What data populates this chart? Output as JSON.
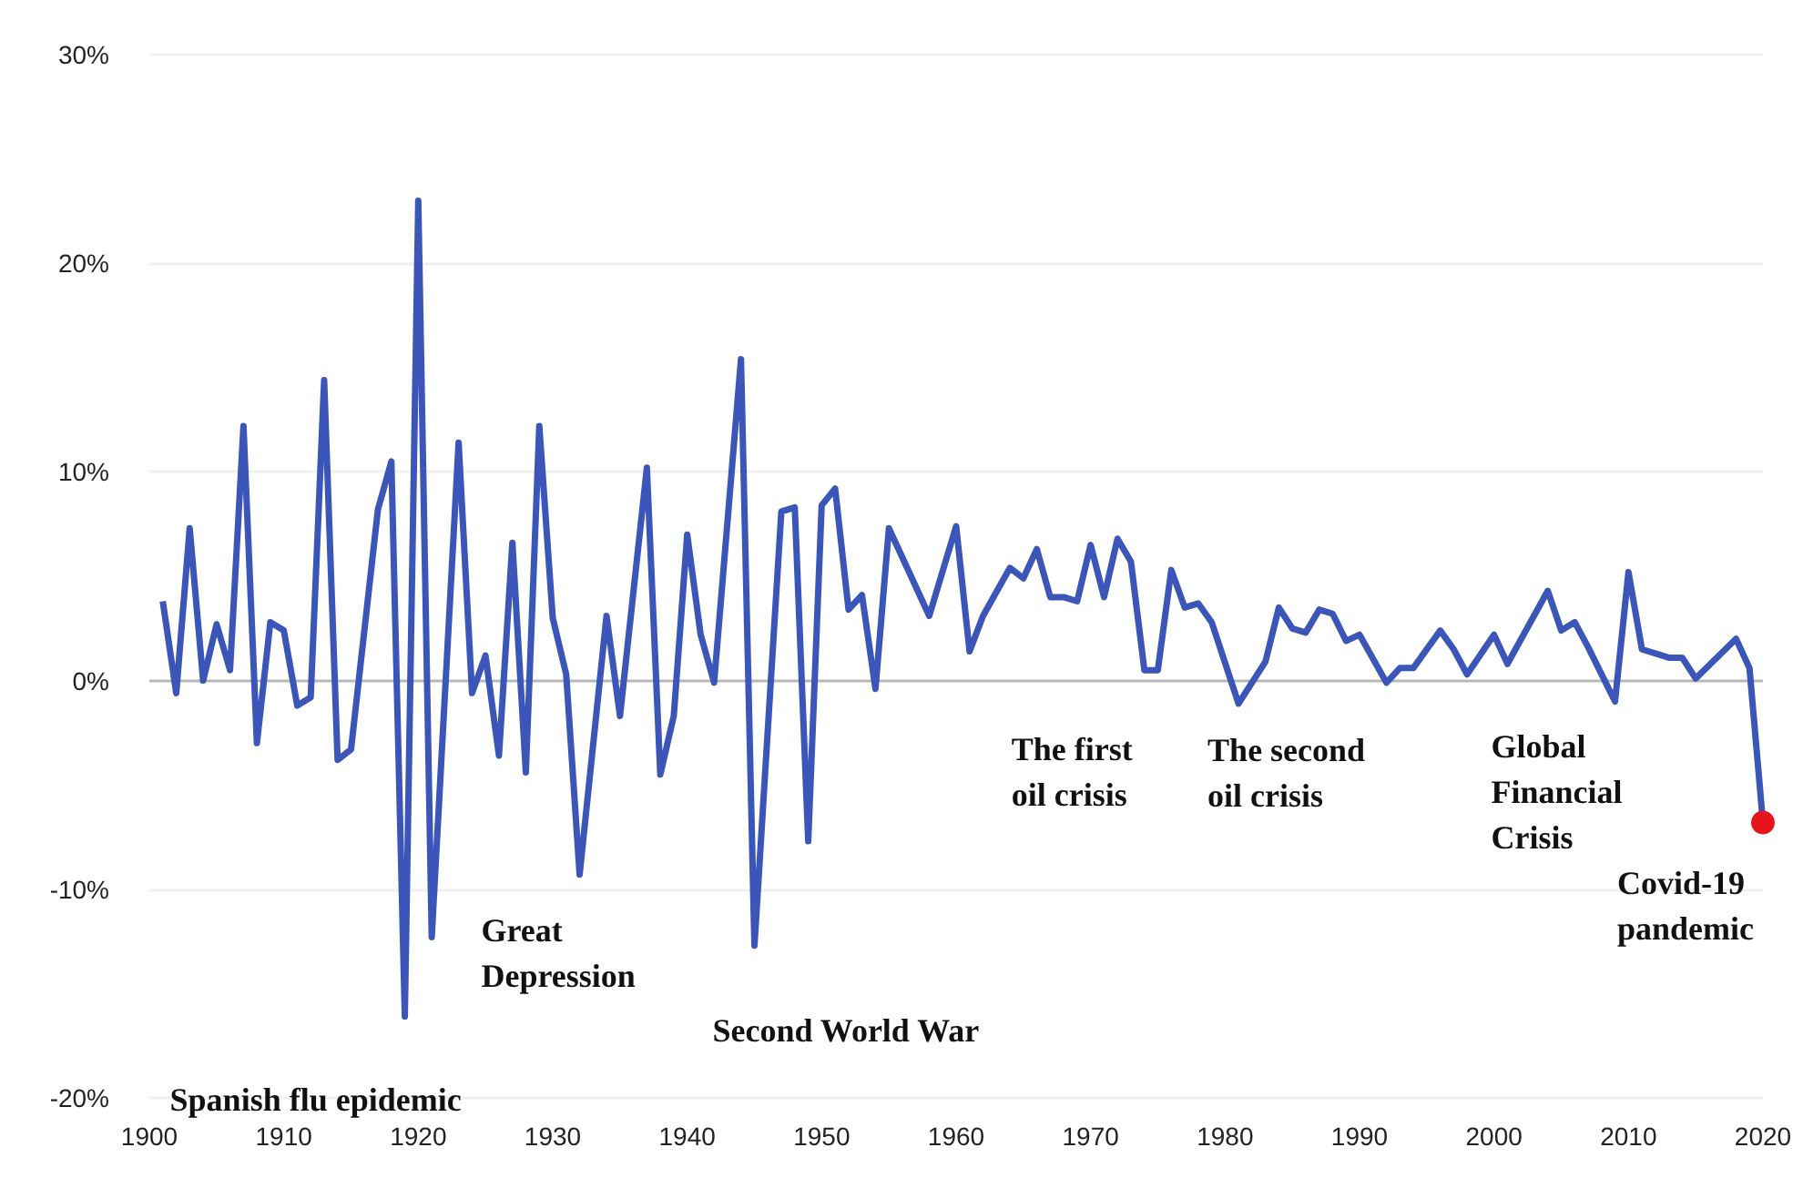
{
  "chart_data": {
    "type": "line",
    "series": [
      {
        "color": "#3b56b8",
        "x": [
          1901,
          1902,
          1903,
          1904,
          1905,
          1906,
          1907,
          1908,
          1909,
          1910,
          1911,
          1912,
          1913,
          1914,
          1915,
          1917,
          1918,
          1919,
          1920,
          1921,
          1923,
          1924,
          1925,
          1926,
          1927,
          1928,
          1929,
          1930,
          1931,
          1932,
          1934,
          1935,
          1937,
          1938,
          1939,
          1940,
          1941,
          1942,
          1944,
          1945,
          1947,
          1948,
          1949,
          1950,
          1951,
          1952,
          1953,
          1954,
          1955,
          1958,
          1960,
          1961,
          1962,
          1964,
          1965,
          1966,
          1967,
          1968,
          1969,
          1970,
          1971,
          1972,
          1973,
          1974,
          1975,
          1976,
          1977,
          1978,
          1979,
          1981,
          1983,
          1984,
          1985,
          1986,
          1987,
          1988,
          1989,
          1990,
          1992,
          1993,
          1994,
          1996,
          1997,
          1998,
          2000,
          2001,
          2004,
          2005,
          2006,
          2007,
          2009,
          2010,
          2011,
          2013,
          2014,
          2015,
          2018,
          2019,
          2020
        ],
        "values": [
          3.8,
          -0.6,
          7.3,
          0,
          2.7,
          0.5,
          12.2,
          -3.0,
          2.8,
          2.4,
          -1.2,
          -0.8,
          14.4,
          -3.8,
          -3.3,
          8.2,
          10.5,
          -16.1,
          23.0,
          -12.3,
          11.4,
          -0.6,
          1.2,
          -3.6,
          6.6,
          -4.4,
          12.2,
          3.0,
          0.3,
          -9.3,
          3.1,
          -1.7,
          10.2,
          -4.5,
          -1.7,
          7.0,
          2.2,
          -0.1,
          15.4,
          -12.7,
          8.1,
          8.3,
          -7.7,
          8.4,
          9.2,
          3.4,
          4.1,
          -0.4,
          7.3,
          3.1,
          7.4,
          1.4,
          3.1,
          5.4,
          4.9,
          6.3,
          4.0,
          4.0,
          3.8,
          6.5,
          4.0,
          6.8,
          5.7,
          0.5,
          0.5,
          5.3,
          3.5,
          3.7,
          2.8,
          -1.1,
          0.9,
          3.5,
          2.5,
          2.3,
          3.4,
          3.2,
          1.9,
          2.2,
          -0.1,
          0.6,
          0.6,
          2.4,
          1.5,
          0.3,
          2.2,
          0.8,
          4.3,
          2.4,
          2.8,
          1.6,
          -1.0,
          5.2,
          1.5,
          1.1,
          1.1,
          0.1,
          2.0,
          0.6,
          -6.8
        ]
      },
      {
        "type": "scatter",
        "color": "#e8141c",
        "marker": "circle",
        "x": [
          2020
        ],
        "values": [
          -6.8
        ]
      }
    ],
    "xlim": [
      1900,
      2020
    ],
    "xticks": [
      1900,
      1910,
      1920,
      1930,
      1940,
      1950,
      1960,
      1970,
      1980,
      1990,
      2000,
      2010,
      2020
    ],
    "ylim": [
      -20,
      30
    ],
    "yticks": [
      {
        "value": -20,
        "label": "-20%"
      },
      {
        "value": -10,
        "label": "-10%"
      },
      {
        "value": 0,
        "label": "0%"
      },
      {
        "value": 10,
        "label": "10%"
      },
      {
        "value": 20,
        "label": "20%"
      },
      {
        "value": 30,
        "label": "30%"
      }
    ],
    "grid": "y",
    "marker": "none",
    "annotations": [
      {
        "text": "Spanish flu epidemic",
        "x": 1919,
        "y": -16.1
      },
      {
        "text": "Great Depression",
        "x": 1932,
        "y": -9.3
      },
      {
        "text": "Second World War",
        "x": 1945,
        "y": -12.7
      },
      {
        "text": "The first oil crisis",
        "x": 1974,
        "y": 0.5
      },
      {
        "text": "The second oil crisis",
        "x": 1981,
        "y": -1.1
      },
      {
        "text": "Global Financial Crisis",
        "x": 2009,
        "y": -1.0
      },
      {
        "text": "Covid-19 pandemic",
        "x": 2020,
        "y": -6.8
      }
    ]
  }
}
